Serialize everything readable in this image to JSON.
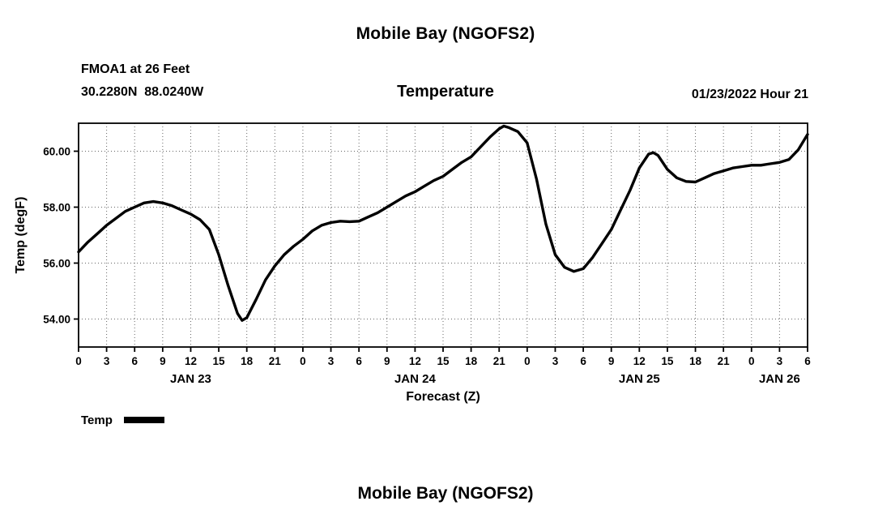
{
  "header": {
    "title": "Mobile Bay (NGOFS2)",
    "station_line1": "FMOA1 at 26 Feet",
    "station_line2": "30.2280N  88.0240W",
    "chart_label": "Temperature",
    "datetime_label": "01/23/2022 Hour 21"
  },
  "legend": {
    "label": "Temp"
  },
  "footer": {
    "next_title": "Mobile Bay (NGOFS2)"
  },
  "chart_data": {
    "type": "line",
    "title": "Temperature",
    "xlabel": "Forecast (Z)",
    "ylabel": "Temp (degF)",
    "x_start_hour": 0,
    "x_end_hour": 78,
    "x_tick_step": 3,
    "x_tick_label_mod": 24,
    "ylim": [
      53,
      61
    ],
    "y_ticks": [
      54,
      56,
      58,
      60
    ],
    "grid": {
      "style": "dotted",
      "color": "#666666"
    },
    "line_color": "#000000",
    "day_labels": [
      {
        "label": "JAN 23",
        "center_hour": 12
      },
      {
        "label": "JAN 24",
        "center_hour": 36
      },
      {
        "label": "JAN 25",
        "center_hour": 60
      },
      {
        "label": "JAN 26",
        "center_hour": 75
      }
    ],
    "series": [
      {
        "name": "Temp",
        "color": "#000000",
        "points": [
          [
            0,
            56.4
          ],
          [
            1,
            56.75
          ],
          [
            2,
            57.05
          ],
          [
            3,
            57.35
          ],
          [
            4,
            57.6
          ],
          [
            5,
            57.85
          ],
          [
            6,
            58.0
          ],
          [
            7,
            58.15
          ],
          [
            8,
            58.2
          ],
          [
            9,
            58.15
          ],
          [
            10,
            58.05
          ],
          [
            11,
            57.9
          ],
          [
            12,
            57.75
          ],
          [
            13,
            57.55
          ],
          [
            14,
            57.2
          ],
          [
            15,
            56.3
          ],
          [
            16,
            55.2
          ],
          [
            17,
            54.2
          ],
          [
            17.5,
            53.95
          ],
          [
            18,
            54.05
          ],
          [
            19,
            54.7
          ],
          [
            20,
            55.4
          ],
          [
            21,
            55.9
          ],
          [
            22,
            56.3
          ],
          [
            23,
            56.6
          ],
          [
            24,
            56.85
          ],
          [
            25,
            57.15
          ],
          [
            26,
            57.35
          ],
          [
            27,
            57.45
          ],
          [
            28,
            57.5
          ],
          [
            29,
            57.48
          ],
          [
            30,
            57.5
          ],
          [
            31,
            57.65
          ],
          [
            32,
            57.8
          ],
          [
            33,
            58.0
          ],
          [
            34,
            58.2
          ],
          [
            35,
            58.4
          ],
          [
            36,
            58.55
          ],
          [
            37,
            58.75
          ],
          [
            38,
            58.95
          ],
          [
            39,
            59.1
          ],
          [
            40,
            59.35
          ],
          [
            41,
            59.6
          ],
          [
            42,
            59.8
          ],
          [
            43,
            60.15
          ],
          [
            44,
            60.5
          ],
          [
            45,
            60.8
          ],
          [
            45.5,
            60.9
          ],
          [
            46,
            60.85
          ],
          [
            47,
            60.7
          ],
          [
            48,
            60.3
          ],
          [
            49,
            59.0
          ],
          [
            50,
            57.4
          ],
          [
            51,
            56.3
          ],
          [
            52,
            55.85
          ],
          [
            53,
            55.7
          ],
          [
            54,
            55.8
          ],
          [
            55,
            56.2
          ],
          [
            56,
            56.7
          ],
          [
            57,
            57.2
          ],
          [
            58,
            57.9
          ],
          [
            59,
            58.6
          ],
          [
            60,
            59.4
          ],
          [
            61,
            59.9
          ],
          [
            61.5,
            59.95
          ],
          [
            62,
            59.85
          ],
          [
            63,
            59.35
          ],
          [
            64,
            59.05
          ],
          [
            65,
            58.92
          ],
          [
            66,
            58.9
          ],
          [
            67,
            59.05
          ],
          [
            68,
            59.2
          ],
          [
            69,
            59.3
          ],
          [
            70,
            59.4
          ],
          [
            71,
            59.45
          ],
          [
            72,
            59.5
          ],
          [
            73,
            59.5
          ],
          [
            74,
            59.55
          ],
          [
            75,
            59.6
          ],
          [
            76,
            59.7
          ],
          [
            77,
            60.05
          ],
          [
            78,
            60.6
          ]
        ]
      }
    ]
  }
}
